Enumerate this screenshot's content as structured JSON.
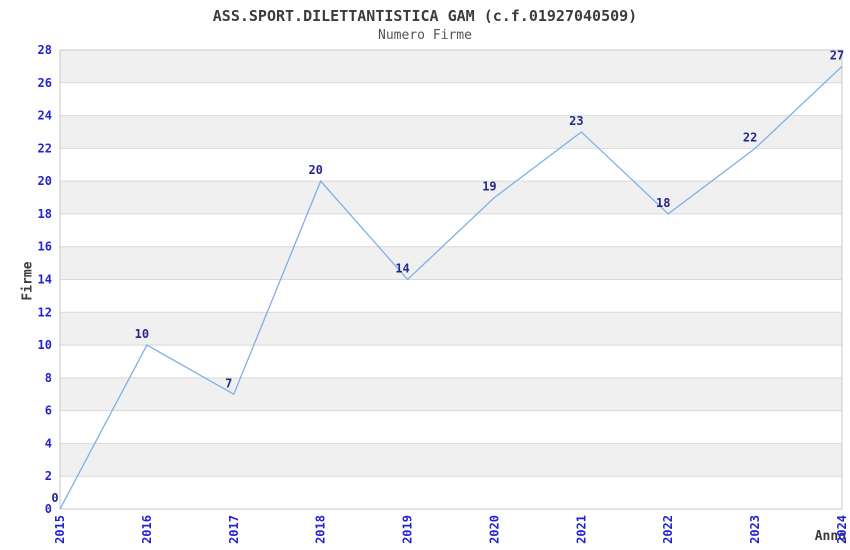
{
  "chart_data": {
    "type": "line",
    "title": "ASS.SPORT.DILETTANTISTICA GAM (c.f.01927040509)",
    "subtitle": "Numero Firme",
    "xlabel": "Anno",
    "ylabel": "Firme",
    "x": [
      2015,
      2016,
      2017,
      2018,
      2019,
      2020,
      2021,
      2022,
      2023,
      2024
    ],
    "series": [
      {
        "name": "Numero Firme",
        "values": [
          0,
          10,
          7,
          20,
          14,
          19,
          23,
          18,
          22,
          27
        ]
      }
    ],
    "point_labels": [
      "0",
      "10",
      "7",
      "20",
      "14",
      "19",
      "23",
      "18",
      "22",
      "27"
    ],
    "ylim": [
      0,
      28
    ],
    "ytick_step": 2,
    "yticks": [
      0,
      2,
      4,
      6,
      8,
      10,
      12,
      14,
      16,
      18,
      20,
      22,
      24,
      26,
      28
    ],
    "xtick_rotation": -90,
    "grid": "horizontal",
    "background_bands": "gray stripes every 2 units starting at 2",
    "legend": "none",
    "colors": {
      "line": "#7fb0e5",
      "tick_label": "#2323d1",
      "point_label": "#26268c",
      "band": "#f0f0f0",
      "gridline": "#d9d9d9",
      "plot_border": "#c9c9c9",
      "title": "#3c3c3c",
      "subtitle": "#555555",
      "axis_title": "#3c3c3c",
      "background": "#ffffff"
    }
  }
}
